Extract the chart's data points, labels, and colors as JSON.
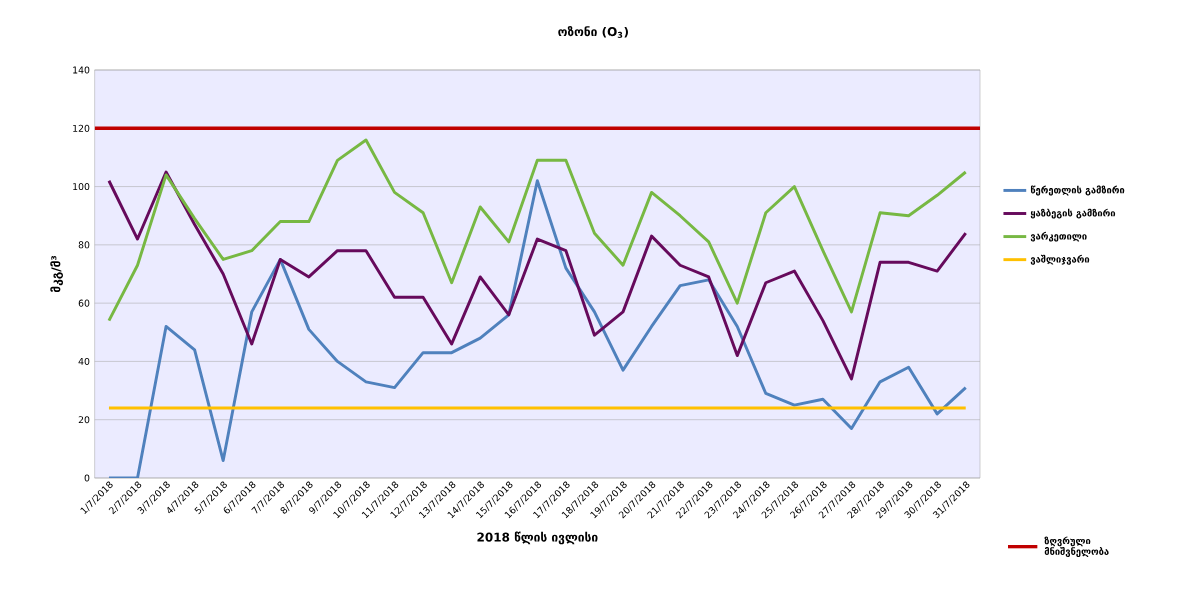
{
  "chart_data": {
    "type": "line",
    "title": "ოზონი (O$_{3}$)",
    "xlabel": "2018 წლის ივლისი",
    "ylabel": "მკგ/მ³",
    "categories": [
      "1/7/2018",
      "2/7/2018",
      "3/7/2018",
      "4/7/2018",
      "5/7/2018",
      "6/7/2018",
      "7/7/2018",
      "8/7/2018",
      "9/7/2018",
      "10/7/2018",
      "11/7/2018",
      "12/7/2018",
      "13/7/2018",
      "14/7/2018",
      "15/7/2018",
      "16/7/2018",
      "17/7/2018",
      "18/7/2018",
      "19/7/2018",
      "20/7/2018",
      "21/7/2018",
      "22/7/2018",
      "23/7/2018",
      "24/7/2018",
      "25/7/2018",
      "26/7/2018",
      "27/7/2018",
      "28/7/2018",
      "29/7/2018",
      "30/7/2018",
      "31/7/2018"
    ],
    "series": [
      {
        "name": "წერეთლის გამზირი",
        "color": "#4f81bd",
        "values": [
          0,
          0,
          52,
          44,
          6,
          57,
          75,
          51,
          40,
          33,
          31,
          43,
          43,
          48,
          56,
          102,
          72,
          57,
          37,
          52,
          66,
          68,
          52,
          29,
          25,
          27,
          17,
          33,
          38,
          22,
          31
        ]
      },
      {
        "name": "ყაზბეგის გამზირი",
        "color": "#660a5c",
        "values": [
          102,
          82,
          105,
          87,
          70,
          46,
          75,
          69,
          78,
          78,
          62,
          62,
          46,
          69,
          56,
          82,
          78,
          49,
          57,
          83,
          73,
          69,
          42,
          67,
          71,
          54,
          34,
          74,
          74,
          71,
          84
        ]
      },
      {
        "name": "ვარკეთილი",
        "color": "#77b843",
        "values": [
          54,
          73,
          104,
          89,
          75,
          78,
          88,
          88,
          109,
          116,
          98,
          91,
          67,
          93,
          81,
          109,
          109,
          84,
          73,
          98,
          90,
          81,
          60,
          91,
          100,
          78,
          57,
          91,
          90,
          97,
          105
        ]
      },
      {
        "name": "ვაშლიჯვარი",
        "color": "#ffc000",
        "values": [
          24,
          24,
          24,
          24,
          24,
          24,
          24,
          24,
          24,
          24,
          24,
          24,
          24,
          24,
          24,
          24,
          24,
          24,
          24,
          24,
          24,
          24,
          24,
          24,
          24,
          24,
          24,
          24,
          24,
          24,
          24
        ]
      }
    ],
    "ref_lines": [
      {
        "axis": "y",
        "value": 120,
        "label": "ზღვრული მნიშვნელობა",
        "color": "#c00000"
      }
    ],
    "ylim": [
      0,
      140
    ],
    "yticks": [
      0,
      20,
      40,
      60,
      80,
      100,
      120,
      140
    ],
    "grid": "y",
    "legend": "right"
  }
}
